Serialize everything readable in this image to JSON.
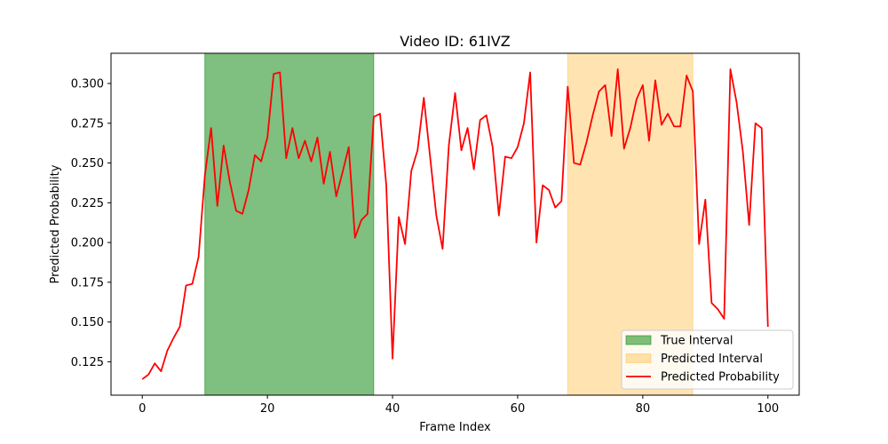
{
  "chart_data": {
    "type": "line",
    "title": "Video ID: 61IVZ",
    "xlabel": "Frame Index",
    "ylabel": "Predicted Probability",
    "xlim": [
      -5,
      105
    ],
    "ylim": [
      0.104,
      0.319
    ],
    "xticks": [
      0,
      20,
      40,
      60,
      80,
      100
    ],
    "yticks": [
      0.125,
      0.15,
      0.175,
      0.2,
      0.225,
      0.25,
      0.275,
      0.3
    ],
    "ytick_labels": [
      "0.125",
      "0.150",
      "0.175",
      "0.200",
      "0.225",
      "0.250",
      "0.275",
      "0.300"
    ],
    "grid": false,
    "legend_position": "lower-right",
    "spans": [
      {
        "name": "True Interval",
        "x_start": 10,
        "x_end": 37,
        "color": "#008000",
        "alpha": 0.5
      },
      {
        "name": "Predicted Interval",
        "x_start": 68,
        "x_end": 88,
        "color": "#FFA500",
        "alpha": 0.3
      }
    ],
    "series": [
      {
        "name": "Predicted Probability",
        "color": "#FF0000",
        "x": [
          0,
          1,
          2,
          3,
          4,
          5,
          6,
          7,
          8,
          9,
          10,
          11,
          12,
          13,
          14,
          15,
          16,
          17,
          18,
          19,
          20,
          21,
          22,
          23,
          24,
          25,
          26,
          27,
          28,
          29,
          30,
          31,
          32,
          33,
          34,
          35,
          36,
          37,
          38,
          39,
          40,
          41,
          42,
          43,
          44,
          45,
          46,
          47,
          48,
          49,
          50,
          51,
          52,
          53,
          54,
          55,
          56,
          57,
          58,
          59,
          60,
          61,
          62,
          63,
          64,
          65,
          66,
          67,
          68,
          69,
          70,
          71,
          72,
          73,
          74,
          75,
          76,
          77,
          78,
          79,
          80,
          81,
          82,
          83,
          84,
          85,
          86,
          87,
          88,
          89,
          90,
          91,
          92,
          93,
          94,
          95,
          96,
          97,
          98,
          99,
          100
        ],
        "values": [
          0.114,
          0.117,
          0.124,
          0.119,
          0.132,
          0.14,
          0.147,
          0.173,
          0.174,
          0.191,
          0.242,
          0.272,
          0.223,
          0.261,
          0.238,
          0.22,
          0.218,
          0.233,
          0.255,
          0.251,
          0.266,
          0.306,
          0.307,
          0.253,
          0.272,
          0.253,
          0.264,
          0.251,
          0.266,
          0.237,
          0.257,
          0.229,
          0.244,
          0.26,
          0.203,
          0.214,
          0.218,
          0.279,
          0.281,
          0.236,
          0.127,
          0.216,
          0.199,
          0.245,
          0.258,
          0.291,
          0.254,
          0.217,
          0.196,
          0.261,
          0.294,
          0.258,
          0.272,
          0.246,
          0.277,
          0.28,
          0.26,
          0.217,
          0.254,
          0.253,
          0.26,
          0.275,
          0.307,
          0.2,
          0.236,
          0.233,
          0.222,
          0.226,
          0.298,
          0.25,
          0.249,
          0.263,
          0.28,
          0.295,
          0.299,
          0.267,
          0.309,
          0.259,
          0.272,
          0.29,
          0.299,
          0.264,
          0.302,
          0.274,
          0.281,
          0.273,
          0.273,
          0.305,
          0.295,
          0.199,
          0.227,
          0.162,
          0.158,
          0.152,
          0.309,
          0.288,
          0.257,
          0.211,
          0.275,
          0.272,
          0.147
        ]
      }
    ]
  }
}
